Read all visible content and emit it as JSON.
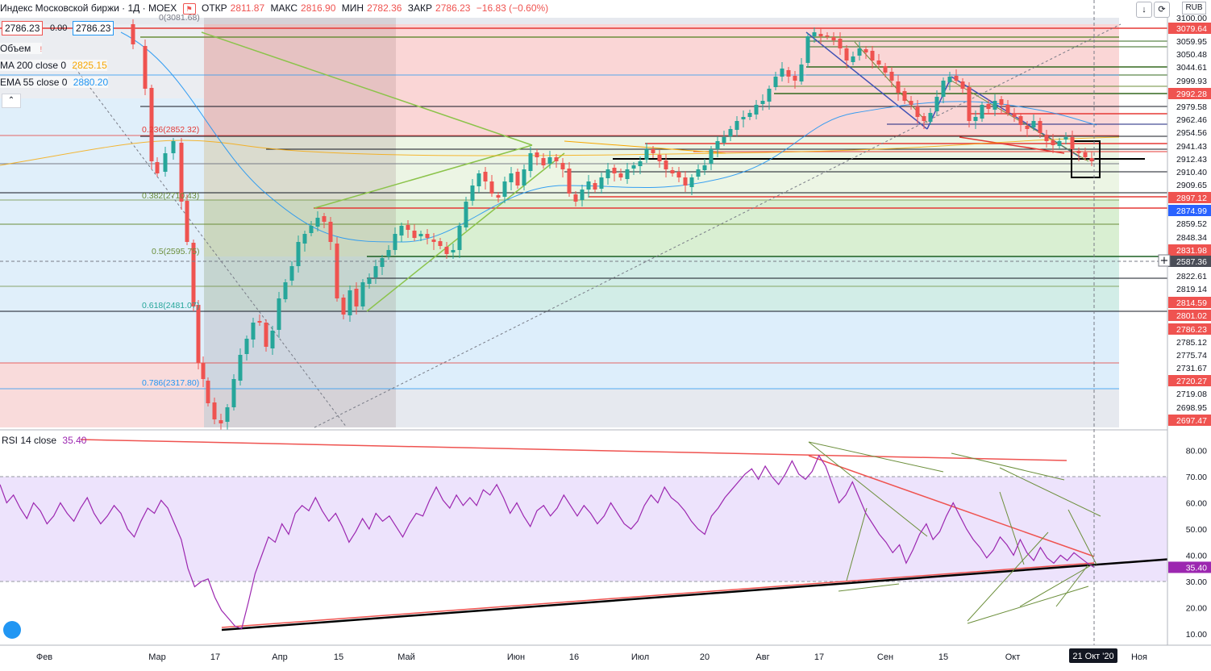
{
  "header": {
    "title": "Индекс Московской биржи · 1Д · MOEX",
    "open_label": "ОТКР",
    "open": "2811.87",
    "high_label": "МАКС",
    "high": "2816.90",
    "low_label": "МИН",
    "low": "2782.36",
    "close_label": "ЗАКР",
    "close": "2786.23",
    "change": "−16.83 (−0.60%)",
    "bid": "2786.23",
    "spread": "0.00",
    "ask": "2786.23",
    "currency": "RUB"
  },
  "indicators": {
    "volume_label": "Объем",
    "ma_label": "MA 200 close 0",
    "ma_value": "2825.15",
    "ema_label": "EMA 55 close 0",
    "ema_value": "2880.20",
    "rsi_label": "RSI 14 close",
    "rsi_value": "35.40"
  },
  "icons": [
    "flag-icon",
    "arrow-down-icon",
    "refresh-icon",
    "collapse-icon",
    "crosshair-plus-icon",
    "tradingview-logo-icon"
  ],
  "colors": {
    "up": "#26a69a",
    "down": "#ef5350",
    "rsi": "#9c27b0",
    "ma200": "#f7a600",
    "ema55": "#2196f3"
  },
  "chart_data": [
    {
      "type": "candlestick",
      "title": "",
      "series": [
        {
          "name": "MA 200 close 0"
        },
        {
          "name": "EMA 55 close 0"
        }
      ],
      "x_axis_labels": [
        "Фев",
        "Мар",
        "17",
        "Апр",
        "15",
        "Май",
        "Июн",
        "16",
        "Июл",
        "20",
        "Авг",
        "17",
        "Сен",
        "15",
        "Окт",
        "Ноя"
      ],
      "current_date_label": "21 Окт '20",
      "y_axis_labels": [
        "3100.00",
        "3079.64",
        "3059.95",
        "3050.48",
        "3044.61",
        "2999.93",
        "2992.28",
        "2979.58",
        "2962.46",
        "2954.56",
        "2941.43",
        "2912.43",
        "2910.40",
        "2909.65",
        "2897.12",
        "2874.99",
        "2859.52",
        "2848.34",
        "2831.98",
        "2587.36",
        "2822.61",
        "2819.14",
        "2814.59",
        "2801.02",
        "2786.23",
        "2785.12",
        "2775.74",
        "2731.67",
        "2720.27",
        "2719.08",
        "2698.95",
        "2697.47"
      ],
      "fibonacci": [
        {
          "level": "0",
          "price": "3081.68"
        },
        {
          "level": "0.236",
          "price": "2852.32"
        },
        {
          "level": "0.382",
          "price": "2710.43"
        },
        {
          "level": "0.5",
          "price": "2595.75"
        },
        {
          "level": "0.618",
          "price": "2481.07"
        },
        {
          "level": "0.786",
          "price": "2317.80"
        }
      ]
    },
    {
      "type": "line",
      "title": "",
      "series": [
        {
          "name": "RSI 14 close"
        }
      ],
      "last_value": 35.4,
      "ylim": [
        5,
        85
      ],
      "band": [
        30,
        70
      ],
      "y_ticks": [
        "80.00",
        "70.00",
        "60.00",
        "50.00",
        "40.00",
        "30.00",
        "20.00",
        "10.00"
      ],
      "values": [
        67,
        60,
        63,
        58,
        54,
        60,
        57,
        52,
        55,
        60,
        56,
        53,
        58,
        62,
        56,
        52,
        55,
        59,
        56,
        50,
        47,
        53,
        58,
        56,
        61,
        58,
        52,
        46,
        35,
        28,
        30,
        31,
        24,
        19,
        16,
        13,
        12,
        22,
        33,
        40,
        47,
        45,
        52,
        48,
        56,
        59,
        57,
        62,
        57,
        53,
        56,
        51,
        45,
        49,
        54,
        50,
        56,
        53,
        55,
        51,
        47,
        52,
        56,
        55,
        61,
        66,
        61,
        58,
        63,
        59,
        62,
        59,
        65,
        63,
        67,
        62,
        56,
        60,
        55,
        51,
        57,
        59,
        55,
        58,
        63,
        59,
        55,
        59,
        56,
        52,
        55,
        60,
        56,
        52,
        50,
        53,
        59,
        63,
        60,
        66,
        62,
        60,
        57,
        53,
        50,
        48,
        55,
        58,
        62,
        65,
        68,
        71,
        73,
        69,
        74,
        70,
        67,
        71,
        76,
        71,
        69,
        72,
        78,
        74,
        67,
        60,
        63,
        68,
        62,
        56,
        52,
        48,
        45,
        41,
        44,
        37,
        42,
        48,
        52,
        46,
        49,
        55,
        60,
        55,
        50,
        46,
        43,
        39,
        42,
        47,
        44,
        40,
        46,
        41,
        38,
        43,
        39,
        37,
        40,
        38,
        41,
        39,
        37,
        35.4
      ]
    }
  ]
}
